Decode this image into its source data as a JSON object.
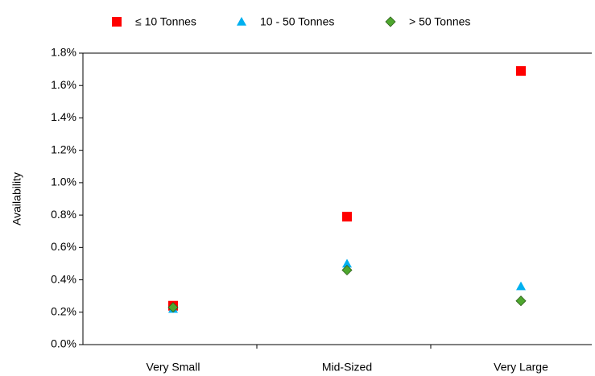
{
  "chart_data": {
    "type": "scatter",
    "y_label": "Availability",
    "categories": [
      "Very Small",
      "Mid-Sized",
      "Very Large"
    ],
    "series": [
      {
        "name": "≤ 10 Tonnes",
        "color": "#ff0000",
        "marker": "square",
        "values": [
          0.24,
          0.79,
          1.69
        ]
      },
      {
        "name": "10 - 50 Tonnes",
        "color": "#00b0f0",
        "marker": "triangle",
        "values": [
          0.22,
          0.5,
          0.36
        ]
      },
      {
        "name": "> 50 Tonnes",
        "color": "#4ea72e",
        "marker": "diamond",
        "values": [
          0.23,
          0.46,
          0.27
        ]
      }
    ],
    "ylim": [
      0,
      1.8
    ],
    "yticks": [
      {
        "value": 0,
        "label": "0.0%"
      },
      {
        "value": 0.2,
        "label": "0.2%"
      },
      {
        "value": 0.4,
        "label": "0.4%"
      },
      {
        "value": 0.6,
        "label": "0.6%"
      },
      {
        "value": 0.8,
        "label": "0.8%"
      },
      {
        "value": 1.0,
        "label": "1.0%"
      },
      {
        "value": 1.2,
        "label": "1.2%"
      },
      {
        "value": 1.4,
        "label": "1.4%"
      },
      {
        "value": 1.6,
        "label": "1.6%"
      },
      {
        "value": 1.8,
        "label": "1.8%"
      }
    ],
    "legend": "top"
  }
}
